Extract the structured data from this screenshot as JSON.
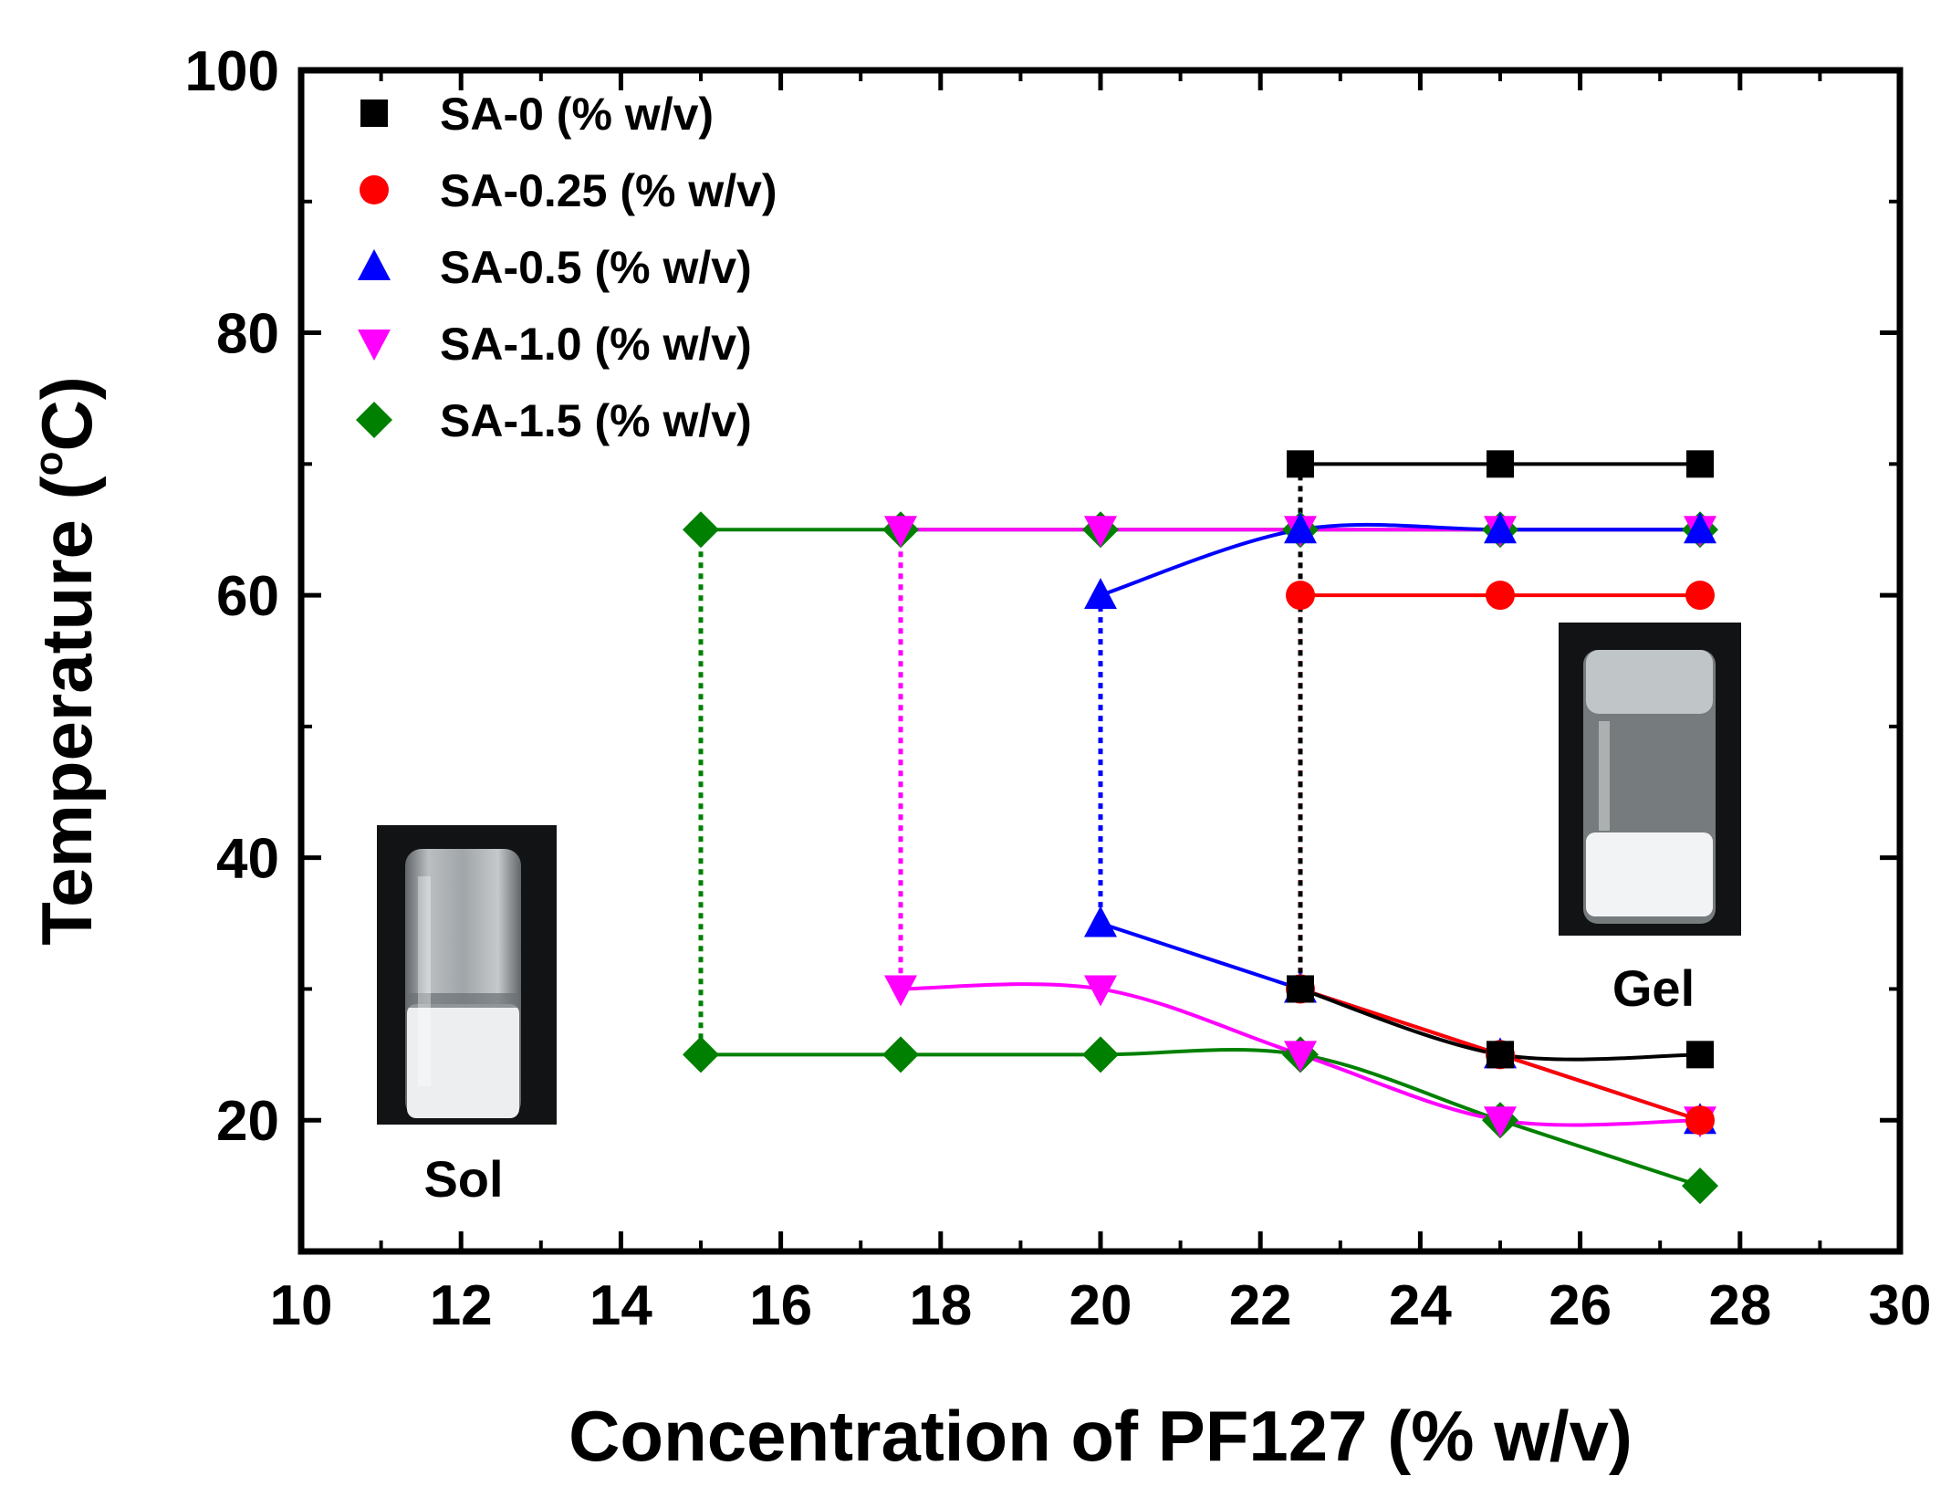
{
  "chart_data": {
    "type": "line",
    "xlabel": "Concentration of PF127 (% w/v)",
    "ylabel_main": "Temperature (",
    "ylabel_degree": "o",
    "ylabel_unit": "C)",
    "xlim": [
      10,
      30
    ],
    "ylim": [
      10,
      100
    ],
    "xticks": [
      10,
      12,
      14,
      16,
      18,
      20,
      22,
      24,
      26,
      28,
      30
    ],
    "yticks": [
      20,
      40,
      60,
      80,
      100
    ],
    "legend_position": "top-left",
    "series": [
      {
        "name": "SA-0 (% w/v)",
        "color": "#000000",
        "marker": "square",
        "upper": {
          "x": [
            22.5,
            25,
            27.5
          ],
          "y": [
            70,
            70,
            70
          ]
        },
        "lower": {
          "x": [
            22.5,
            25,
            27.5
          ],
          "y": [
            30,
            25,
            25
          ]
        },
        "transition_x": 22.5
      },
      {
        "name": "SA-0.25 (% w/v)",
        "color": "#ff0000",
        "marker": "circle",
        "upper": {
          "x": [
            22.5,
            25,
            27.5
          ],
          "y": [
            60,
            60,
            60
          ]
        },
        "lower": {
          "x": [
            22.5,
            25,
            27.5
          ],
          "y": [
            30,
            25,
            20
          ]
        },
        "transition_x": 22.5
      },
      {
        "name": "SA-0.5 (% w/v)",
        "color": "#0000ff",
        "marker": "triangle-up",
        "upper": {
          "x": [
            20,
            22.5,
            25,
            27.5
          ],
          "y": [
            60,
            65,
            65,
            65
          ]
        },
        "lower": {
          "x": [
            20,
            22.5,
            25,
            27.5
          ],
          "y": [
            35,
            30,
            25,
            20
          ]
        },
        "transition_x": 20
      },
      {
        "name": "SA-1.0 (% w/v)",
        "color": "#ff00ff",
        "marker": "triangle-down",
        "upper": {
          "x": [
            17.5,
            20,
            22.5,
            25,
            27.5
          ],
          "y": [
            65,
            65,
            65,
            65,
            65
          ]
        },
        "lower": {
          "x": [
            17.5,
            20,
            22.5,
            25,
            27.5
          ],
          "y": [
            30,
            30,
            25,
            20,
            20
          ]
        },
        "transition_x": 17.5
      },
      {
        "name": "SA-1.5 (% w/v)",
        "color": "#008000",
        "marker": "diamond",
        "upper": {
          "x": [
            15,
            17.5,
            20,
            22.5,
            25,
            27.5
          ],
          "y": [
            65,
            65,
            65,
            65,
            65,
            65
          ]
        },
        "lower": {
          "x": [
            15,
            17.5,
            20,
            22.5,
            25,
            27.5
          ],
          "y": [
            25,
            25,
            25,
            25,
            20,
            15
          ]
        },
        "transition_x": 15
      }
    ],
    "annotations": [
      {
        "label": "Sol",
        "position": "left-inset"
      },
      {
        "label": "Gel",
        "position": "right-inset"
      }
    ]
  }
}
